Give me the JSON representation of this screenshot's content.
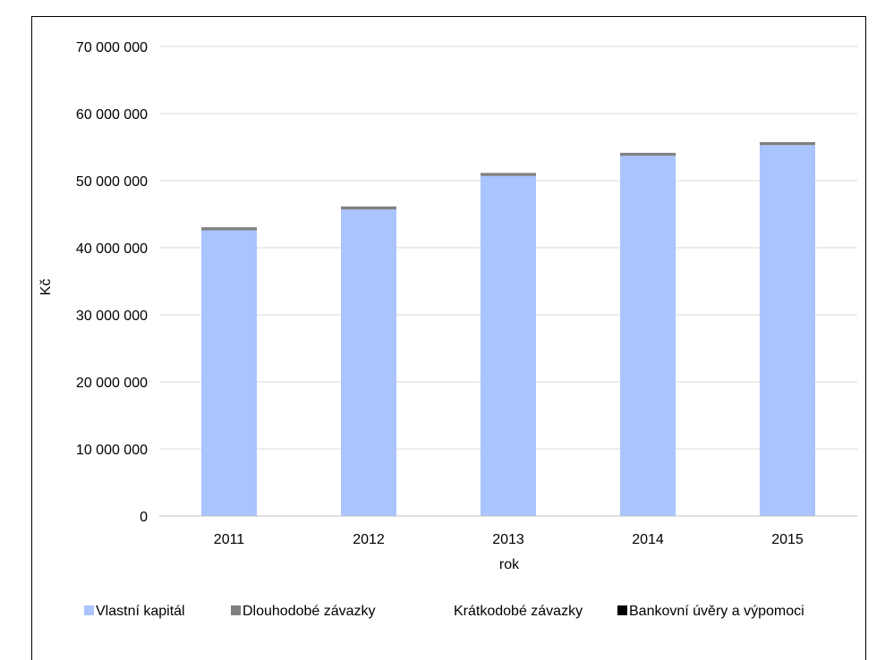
{
  "chart_data": {
    "type": "bar",
    "stacked": true,
    "categories": [
      "2011",
      "2012",
      "2013",
      "2014",
      "2015"
    ],
    "series": [
      {
        "name": "Vlastní kapitál",
        "color": "#a9c4fe",
        "values": [
          42600000,
          45700000,
          50700000,
          53700000,
          55300000
        ]
      },
      {
        "name": "Dlouhodobé závazky",
        "color": "#808080",
        "values": [
          450000,
          450000,
          450000,
          450000,
          450000
        ]
      },
      {
        "name": "Krátkodobé závazky",
        "color": "#ffffff",
        "values": [
          0,
          0,
          0,
          0,
          0
        ]
      },
      {
        "name": "Bankovní úvěry a výpomoci",
        "color": "#000000",
        "values": [
          0,
          0,
          0,
          0,
          0
        ]
      }
    ],
    "title": "",
    "xlabel": "rok",
    "ylabel": "Kč",
    "ylim": [
      0,
      70000000
    ],
    "yticks": [
      0,
      10000000,
      20000000,
      30000000,
      40000000,
      50000000,
      60000000,
      70000000
    ],
    "ytick_labels": [
      "0",
      "10 000 000",
      "20 000 000",
      "30 000 000",
      "40 000 000",
      "50 000 000",
      "60 000 000",
      "70 000 000"
    ],
    "grid": true,
    "legend": "bottom"
  }
}
